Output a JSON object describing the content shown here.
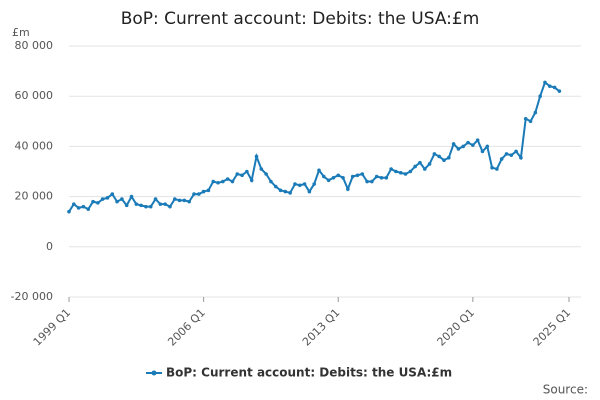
{
  "chart_data": {
    "type": "line",
    "title": "BoP: Current account: Debits: the USA:£m",
    "y_unit": "£m",
    "source": "Source:",
    "categories": [
      "1999 Q1",
      null,
      null,
      null,
      null,
      null,
      null,
      null,
      null,
      null,
      null,
      null,
      null,
      null,
      null,
      null,
      null,
      null,
      null,
      null,
      null,
      null,
      null,
      null,
      null,
      null,
      null,
      null,
      "2006 Q1",
      null,
      null,
      null,
      null,
      null,
      null,
      null,
      null,
      null,
      null,
      null,
      null,
      null,
      null,
      null,
      null,
      null,
      null,
      null,
      null,
      null,
      null,
      null,
      null,
      null,
      null,
      null,
      "2013 Q1",
      null,
      null,
      null,
      null,
      null,
      null,
      null,
      null,
      null,
      null,
      null,
      null,
      null,
      null,
      null,
      null,
      null,
      null,
      null,
      null,
      null,
      null,
      null,
      null,
      null,
      null,
      null,
      "2020 Q1",
      null,
      null,
      null,
      null,
      null,
      null,
      null,
      null,
      null,
      null,
      null,
      null,
      null,
      null,
      null,
      null,
      null,
      null,
      null,
      "2025 Q1"
    ],
    "series": [
      {
        "name": "BoP: Current account: Debits: the USA:£m",
        "color": "#1a7bb8",
        "values": [
          14000,
          17000,
          15500,
          16000,
          15000,
          18000,
          17500,
          19000,
          19500,
          21000,
          18000,
          19000,
          16500,
          20000,
          17000,
          16500,
          16000,
          16000,
          19000,
          17000,
          17000,
          16000,
          19000,
          18500,
          18500,
          18000,
          21000,
          21000,
          22000,
          22500,
          26000,
          25500,
          26000,
          27000,
          26000,
          29000,
          28500,
          30000,
          26500,
          36000,
          31000,
          29000,
          26000,
          24000,
          22500,
          22000,
          21500,
          25000,
          24500,
          25000,
          22000,
          25000,
          30500,
          28000,
          26500,
          27500,
          28500,
          27500,
          23000,
          28000,
          28500,
          29000,
          26000,
          26000,
          28000,
          27500,
          27500,
          31000,
          30000,
          29500,
          29000,
          30000,
          32000,
          33500,
          31000,
          33000,
          37000,
          36000,
          34500,
          35500,
          41000,
          39000,
          40000,
          41500,
          40500,
          42500,
          38000,
          40000,
          31500,
          31000,
          35000,
          37000,
          36500,
          38000,
          35500,
          51000,
          50000,
          53500,
          60000,
          65500,
          64000,
          63500,
          62000,
          null,
          null
        ]
      }
    ],
    "ylim": [
      -20000,
      80000
    ],
    "yticks": [
      {
        "value": -20000,
        "label": "-20 000"
      },
      0,
      {
        "value": 20000,
        "label": "20 000"
      },
      {
        "value": 40000,
        "label": "40 000"
      },
      {
        "value": 60000,
        "label": "60 000"
      },
      {
        "value": 80000,
        "label": "80 000"
      }
    ],
    "grid": true
  }
}
